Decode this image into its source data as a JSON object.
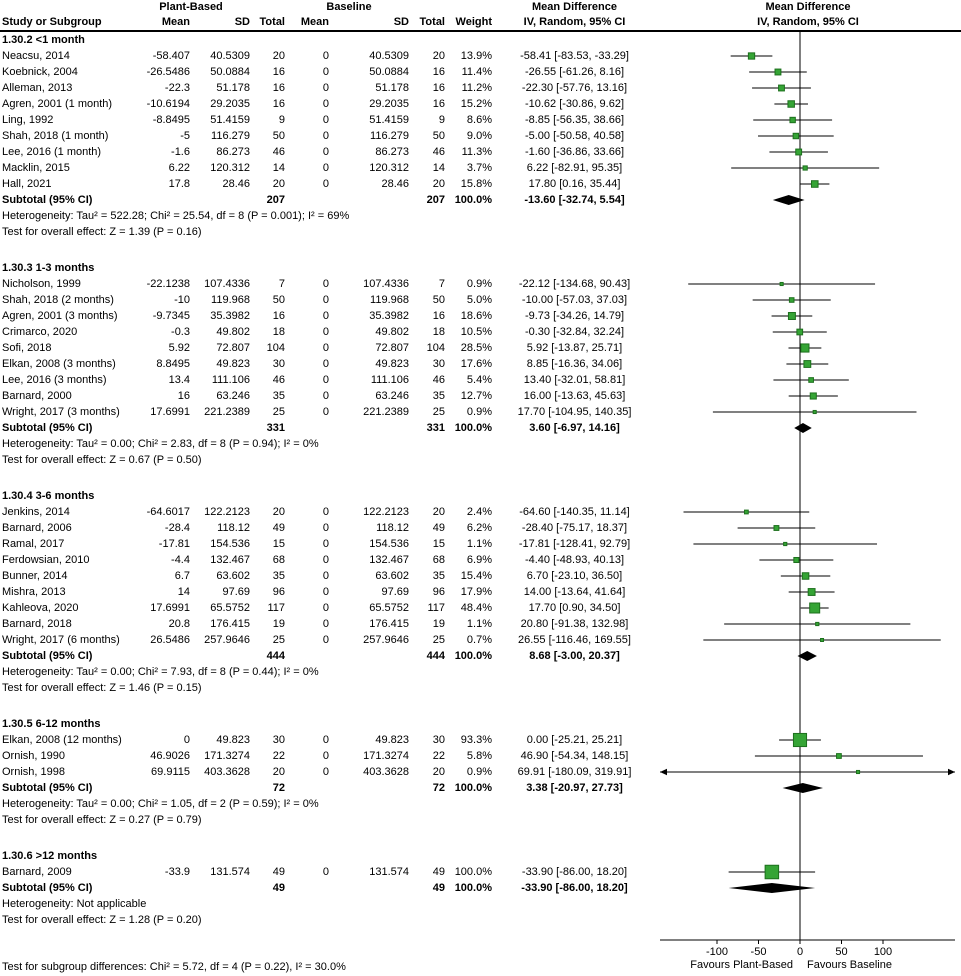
{
  "header": {
    "study_col": "Study or Subgroup",
    "group1": "Plant-Based",
    "group2": "Baseline",
    "sub_cols": [
      "Mean",
      "SD",
      "Total",
      "Mean",
      "SD",
      "Total",
      "Weight"
    ],
    "md_title": "Mean Difference",
    "md_subtitle": "IV, Random, 95% CI",
    "plot_title": "Mean Difference",
    "plot_subtitle": "IV, Random, 95% CI"
  },
  "colors": {
    "marker_fill": "#35a435",
    "marker_stroke": "#1d701d",
    "line": "#000000"
  },
  "footer": {
    "subgroup_test": "Test for subgroup differences: Chi² = 5.72, df = 4 (P = 0.22), I² = 30.0%"
  },
  "chart_data": {
    "type": "forest",
    "effect_label": "Mean Difference",
    "method": "IV, Random, 95% CI",
    "axis": {
      "ticks": [
        -100,
        -50,
        0,
        50,
        100
      ],
      "favours_left": "Favours Plant-Based",
      "favours_right": "Favours Baseline"
    },
    "sections": [
      {
        "heading": "1.30.2 <1 month",
        "studies": [
          {
            "label": "Neacsu, 2014",
            "mean": "-58.407",
            "sd": "40.5309",
            "total": "20",
            "bmean": "0",
            "bsd": "40.5309",
            "btotal": "20",
            "weight": "13.9%",
            "ci": "-58.41 [-83.53, -33.29]",
            "est": -58.41,
            "lo": -83.53,
            "hi": -33.29
          },
          {
            "label": "Koebnick, 2004",
            "mean": "-26.5486",
            "sd": "50.0884",
            "total": "16",
            "bmean": "0",
            "bsd": "50.0884",
            "btotal": "16",
            "weight": "11.4%",
            "ci": "-26.55 [-61.26, 8.16]",
            "est": -26.55,
            "lo": -61.26,
            "hi": 8.16
          },
          {
            "label": "Alleman, 2013",
            "mean": "-22.3",
            "sd": "51.178",
            "total": "16",
            "bmean": "0",
            "bsd": "51.178",
            "btotal": "16",
            "weight": "11.2%",
            "ci": "-22.30 [-57.76, 13.16]",
            "est": -22.3,
            "lo": -57.76,
            "hi": 13.16
          },
          {
            "label": "Agren, 2001 (1 month)",
            "mean": "-10.6194",
            "sd": "29.2035",
            "total": "16",
            "bmean": "0",
            "bsd": "29.2035",
            "btotal": "16",
            "weight": "15.2%",
            "ci": "-10.62 [-30.86, 9.62]",
            "est": -10.62,
            "lo": -30.86,
            "hi": 9.62
          },
          {
            "label": "Ling, 1992",
            "mean": "-8.8495",
            "sd": "51.4159",
            "total": "9",
            "bmean": "0",
            "bsd": "51.4159",
            "btotal": "9",
            "weight": "8.6%",
            "ci": "-8.85 [-56.35, 38.66]",
            "est": -8.85,
            "lo": -56.35,
            "hi": 38.66
          },
          {
            "label": "Shah, 2018 (1 month)",
            "mean": "-5",
            "sd": "116.279",
            "total": "50",
            "bmean": "0",
            "bsd": "116.279",
            "btotal": "50",
            "weight": "9.0%",
            "ci": "-5.00 [-50.58, 40.58]",
            "est": -5,
            "lo": -50.58,
            "hi": 40.58
          },
          {
            "label": "Lee, 2016 (1 month)",
            "mean": "-1.6",
            "sd": "86.273",
            "total": "46",
            "bmean": "0",
            "bsd": "86.273",
            "btotal": "46",
            "weight": "11.3%",
            "ci": "-1.60 [-36.86, 33.66]",
            "est": -1.6,
            "lo": -36.86,
            "hi": 33.66
          },
          {
            "label": "Macklin, 2015",
            "mean": "6.22",
            "sd": "120.312",
            "total": "14",
            "bmean": "0",
            "bsd": "120.312",
            "btotal": "14",
            "weight": "3.7%",
            "ci": "6.22 [-82.91, 95.35]",
            "est": 6.22,
            "lo": -82.91,
            "hi": 95.35
          },
          {
            "label": "Hall, 2021",
            "mean": "17.8",
            "sd": "28.46",
            "total": "20",
            "bmean": "0",
            "bsd": "28.46",
            "btotal": "20",
            "weight": "15.8%",
            "ci": "17.80 [0.16, 35.44]",
            "est": 17.8,
            "lo": 0.16,
            "hi": 35.44
          }
        ],
        "subtotal": {
          "label": "Subtotal (95% CI)",
          "total": "207",
          "btotal": "207",
          "weight": "100.0%",
          "ci": "-13.60 [-32.74, 5.54]",
          "est": -13.6,
          "lo": -32.74,
          "hi": 5.54
        },
        "heterogeneity": "Heterogeneity: Tau² = 522.28; Chi² = 25.54, df = 8 (P = 0.001); I² = 69%",
        "overall": "Test for overall effect: Z = 1.39 (P = 0.16)"
      },
      {
        "heading": "1.30.3 1-3 months",
        "studies": [
          {
            "label": "Nicholson, 1999",
            "mean": "-22.1238",
            "sd": "107.4336",
            "total": "7",
            "bmean": "0",
            "bsd": "107.4336",
            "btotal": "7",
            "weight": "0.9%",
            "ci": "-22.12 [-134.68, 90.43]",
            "est": -22.12,
            "lo": -134.68,
            "hi": 90.43
          },
          {
            "label": "Shah, 2018 (2 months)",
            "mean": "-10",
            "sd": "119.968",
            "total": "50",
            "bmean": "0",
            "bsd": "119.968",
            "btotal": "50",
            "weight": "5.0%",
            "ci": "-10.00 [-57.03, 37.03]",
            "est": -10,
            "lo": -57.03,
            "hi": 37.03
          },
          {
            "label": "Agren, 2001 (3 months)",
            "mean": "-9.7345",
            "sd": "35.3982",
            "total": "16",
            "bmean": "0",
            "bsd": "35.3982",
            "btotal": "16",
            "weight": "18.6%",
            "ci": "-9.73 [-34.26, 14.79]",
            "est": -9.73,
            "lo": -34.26,
            "hi": 14.79
          },
          {
            "label": "Crimarco, 2020",
            "mean": "-0.3",
            "sd": "49.802",
            "total": "18",
            "bmean": "0",
            "bsd": "49.802",
            "btotal": "18",
            "weight": "10.5%",
            "ci": "-0.30 [-32.84, 32.24]",
            "est": -0.3,
            "lo": -32.84,
            "hi": 32.24
          },
          {
            "label": "Sofi, 2018",
            "mean": "5.92",
            "sd": "72.807",
            "total": "104",
            "bmean": "0",
            "bsd": "72.807",
            "btotal": "104",
            "weight": "28.5%",
            "ci": "5.92 [-13.87, 25.71]",
            "est": 5.92,
            "lo": -13.87,
            "hi": 25.71
          },
          {
            "label": "Elkan, 2008 (3 months)",
            "mean": "8.8495",
            "sd": "49.823",
            "total": "30",
            "bmean": "0",
            "bsd": "49.823",
            "btotal": "30",
            "weight": "17.6%",
            "ci": "8.85 [-16.36, 34.06]",
            "est": 8.85,
            "lo": -16.36,
            "hi": 34.06
          },
          {
            "label": "Lee, 2016 (3 months)",
            "mean": "13.4",
            "sd": "111.106",
            "total": "46",
            "bmean": "0",
            "bsd": "111.106",
            "btotal": "46",
            "weight": "5.4%",
            "ci": "13.40 [-32.01, 58.81]",
            "est": 13.4,
            "lo": -32.01,
            "hi": 58.81
          },
          {
            "label": "Barnard, 2000",
            "mean": "16",
            "sd": "63.246",
            "total": "35",
            "bmean": "0",
            "bsd": "63.246",
            "btotal": "35",
            "weight": "12.7%",
            "ci": "16.00 [-13.63, 45.63]",
            "est": 16,
            "lo": -13.63,
            "hi": 45.63
          },
          {
            "label": "Wright, 2017 (3 months)",
            "mean": "17.6991",
            "sd": "221.2389",
            "total": "25",
            "bmean": "0",
            "bsd": "221.2389",
            "btotal": "25",
            "weight": "0.9%",
            "ci": "17.70 [-104.95, 140.35]",
            "est": 17.7,
            "lo": -104.95,
            "hi": 140.35
          }
        ],
        "subtotal": {
          "label": "Subtotal (95% CI)",
          "total": "331",
          "btotal": "331",
          "weight": "100.0%",
          "ci": "3.60 [-6.97, 14.16]",
          "est": 3.6,
          "lo": -6.97,
          "hi": 14.16
        },
        "heterogeneity": "Heterogeneity: Tau² = 0.00; Chi² = 2.83, df = 8 (P = 0.94); I² = 0%",
        "overall": "Test for overall effect: Z = 0.67 (P = 0.50)"
      },
      {
        "heading": "1.30.4 3-6 months",
        "studies": [
          {
            "label": "Jenkins, 2014",
            "mean": "-64.6017",
            "sd": "122.2123",
            "total": "20",
            "bmean": "0",
            "bsd": "122.2123",
            "btotal": "20",
            "weight": "2.4%",
            "ci": "-64.60 [-140.35, 11.14]",
            "est": -64.6,
            "lo": -140.35,
            "hi": 11.14
          },
          {
            "label": "Barnard, 2006",
            "mean": "-28.4",
            "sd": "118.12",
            "total": "49",
            "bmean": "0",
            "bsd": "118.12",
            "btotal": "49",
            "weight": "6.2%",
            "ci": "-28.40 [-75.17, 18.37]",
            "est": -28.4,
            "lo": -75.17,
            "hi": 18.37
          },
          {
            "label": "Ramal, 2017",
            "mean": "-17.81",
            "sd": "154.536",
            "total": "15",
            "bmean": "0",
            "bsd": "154.536",
            "btotal": "15",
            "weight": "1.1%",
            "ci": "-17.81 [-128.41, 92.79]",
            "est": -17.81,
            "lo": -128.41,
            "hi": 92.79
          },
          {
            "label": "Ferdowsian, 2010",
            "mean": "-4.4",
            "sd": "132.467",
            "total": "68",
            "bmean": "0",
            "bsd": "132.467",
            "btotal": "68",
            "weight": "6.9%",
            "ci": "-4.40 [-48.93, 40.13]",
            "est": -4.4,
            "lo": -48.93,
            "hi": 40.13
          },
          {
            "label": "Bunner, 2014",
            "mean": "6.7",
            "sd": "63.602",
            "total": "35",
            "bmean": "0",
            "bsd": "63.602",
            "btotal": "35",
            "weight": "15.4%",
            "ci": "6.70 [-23.10, 36.50]",
            "est": 6.7,
            "lo": -23.1,
            "hi": 36.5
          },
          {
            "label": "Mishra, 2013",
            "mean": "14",
            "sd": "97.69",
            "total": "96",
            "bmean": "0",
            "bsd": "97.69",
            "btotal": "96",
            "weight": "17.9%",
            "ci": "14.00 [-13.64, 41.64]",
            "est": 14,
            "lo": -13.64,
            "hi": 41.64
          },
          {
            "label": "Kahleova, 2020",
            "mean": "17.6991",
            "sd": "65.5752",
            "total": "117",
            "bmean": "0",
            "bsd": "65.5752",
            "btotal": "117",
            "weight": "48.4%",
            "ci": "17.70 [0.90, 34.50]",
            "est": 17.7,
            "lo": 0.9,
            "hi": 34.5
          },
          {
            "label": "Barnard, 2018",
            "mean": "20.8",
            "sd": "176.415",
            "total": "19",
            "bmean": "0",
            "bsd": "176.415",
            "btotal": "19",
            "weight": "1.1%",
            "ci": "20.80 [-91.38, 132.98]",
            "est": 20.8,
            "lo": -91.38,
            "hi": 132.98
          },
          {
            "label": "Wright, 2017 (6 months)",
            "mean": "26.5486",
            "sd": "257.9646",
            "total": "25",
            "bmean": "0",
            "bsd": "257.9646",
            "btotal": "25",
            "weight": "0.7%",
            "ci": "26.55 [-116.46, 169.55]",
            "est": 26.55,
            "lo": -116.46,
            "hi": 169.55
          }
        ],
        "subtotal": {
          "label": "Subtotal (95% CI)",
          "total": "444",
          "btotal": "444",
          "weight": "100.0%",
          "ci": "8.68 [-3.00, 20.37]",
          "est": 8.68,
          "lo": -3,
          "hi": 20.37
        },
        "heterogeneity": "Heterogeneity: Tau² = 0.00; Chi² = 7.93, df = 8 (P = 0.44); I² = 0%",
        "overall": "Test for overall effect: Z = 1.46 (P = 0.15)"
      },
      {
        "heading": "1.30.5 6-12 months",
        "studies": [
          {
            "label": "Elkan, 2008 (12 months)",
            "mean": "0",
            "sd": "49.823",
            "total": "30",
            "bmean": "0",
            "bsd": "49.823",
            "btotal": "30",
            "weight": "93.3%",
            "ci": "0.00 [-25.21, 25.21]",
            "est": 0,
            "lo": -25.21,
            "hi": 25.21
          },
          {
            "label": "Ornish, 1990",
            "mean": "46.9026",
            "sd": "171.3274",
            "total": "22",
            "bmean": "0",
            "bsd": "171.3274",
            "btotal": "22",
            "weight": "5.8%",
            "ci": "46.90 [-54.34, 148.15]",
            "est": 46.9,
            "lo": -54.34,
            "hi": 148.15
          },
          {
            "label": "Ornish, 1998",
            "mean": "69.9115",
            "sd": "403.3628",
            "total": "20",
            "bmean": "0",
            "bsd": "403.3628",
            "btotal": "20",
            "weight": "0.9%",
            "ci": "69.91 [-180.09, 319.91]",
            "est": 69.91,
            "lo": -180.09,
            "hi": 319.91
          }
        ],
        "subtotal": {
          "label": "Subtotal (95% CI)",
          "total": "72",
          "btotal": "72",
          "weight": "100.0%",
          "ci": "3.38 [-20.97, 27.73]",
          "est": 3.38,
          "lo": -20.97,
          "hi": 27.73
        },
        "heterogeneity": "Heterogeneity: Tau² = 0.00; Chi² = 1.05, df = 2 (P = 0.59); I² = 0%",
        "overall": "Test for overall effect: Z = 0.27 (P = 0.79)"
      },
      {
        "heading": "1.30.6 >12 months",
        "studies": [
          {
            "label": "Barnard, 2009",
            "mean": "-33.9",
            "sd": "131.574",
            "total": "49",
            "bmean": "0",
            "bsd": "131.574",
            "btotal": "49",
            "weight": "100.0%",
            "ci": "-33.90 [-86.00, 18.20]",
            "est": -33.9,
            "lo": -86,
            "hi": 18.2
          }
        ],
        "subtotal": {
          "label": "Subtotal (95% CI)",
          "total": "49",
          "btotal": "49",
          "weight": "100.0%",
          "ci": "-33.90 [-86.00, 18.20]",
          "est": -33.9,
          "lo": -86,
          "hi": 18.2
        },
        "heterogeneity": "Heterogeneity: Not applicable",
        "overall": "Test for overall effect: Z = 1.28 (P = 0.20)"
      }
    ]
  }
}
